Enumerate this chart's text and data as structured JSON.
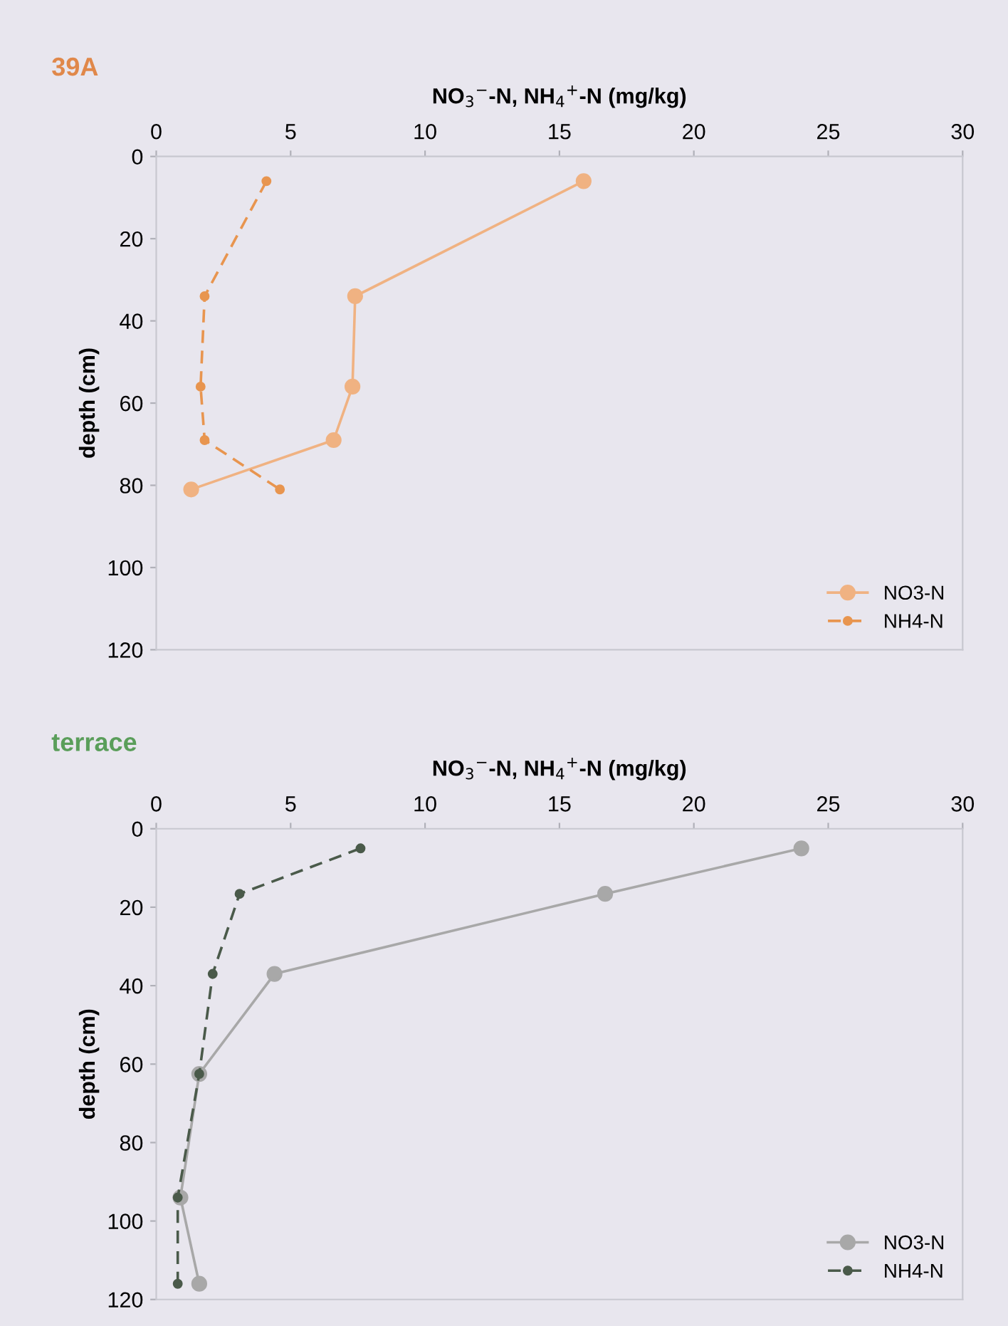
{
  "chart_data": [
    {
      "type": "line",
      "title": "39A",
      "xlabel": "NO$_{3}$$^{−}$-N, NH$_{4}$$^{+}$-N (mg/kg)",
      "ylabel": "depth (cm)",
      "xlim": [
        0,
        30
      ],
      "xticks": [
        0,
        5,
        10,
        15,
        20,
        25,
        30
      ],
      "ylim": [
        120,
        0
      ],
      "yticks": [
        0,
        20,
        40,
        60,
        80,
        100,
        120
      ],
      "grid": false,
      "legend": "bottom right",
      "marker": "circle",
      "series": [
        {
          "name": "NO3-N",
          "color": "#f0b282",
          "line_style": "solid",
          "x": [
            15.9,
            7.4,
            7.3,
            6.6,
            1.3
          ],
          "values": [
            6,
            34,
            56,
            69,
            81
          ]
        },
        {
          "name": "NH4-N",
          "color": "#e8954f",
          "line_style": "dashed",
          "x": [
            4.1,
            1.8,
            1.65,
            1.8,
            4.6
          ],
          "values": [
            6,
            34,
            56,
            69,
            81
          ]
        }
      ]
    },
    {
      "type": "line",
      "title": "terrace",
      "xlabel": "NO$_{3}$$^{−}$-N, NH$_{4}$$^{+}$-N (mg/kg)",
      "ylabel": "depth (cm)",
      "xlim": [
        0,
        30
      ],
      "xticks": [
        0,
        5,
        10,
        15,
        20,
        25,
        30
      ],
      "ylim": [
        120,
        0
      ],
      "yticks": [
        0,
        20,
        40,
        60,
        80,
        100,
        120
      ],
      "grid": false,
      "legend": "bottom right",
      "marker": "circle",
      "series": [
        {
          "name": "NO3-N",
          "color": "#a8a8a8",
          "line_style": "solid",
          "x": [
            24.0,
            16.7,
            4.4,
            1.6,
            0.9,
            1.6
          ],
          "values": [
            5,
            16.6,
            37,
            62.5,
            94,
            116
          ]
        },
        {
          "name": "NH4-N",
          "color": "#4a5a4a",
          "line_style": "dashed",
          "x": [
            7.6,
            3.1,
            2.1,
            1.6,
            0.8,
            0.8
          ],
          "values": [
            5,
            16.6,
            37,
            62.5,
            94,
            116
          ]
        }
      ]
    }
  ]
}
